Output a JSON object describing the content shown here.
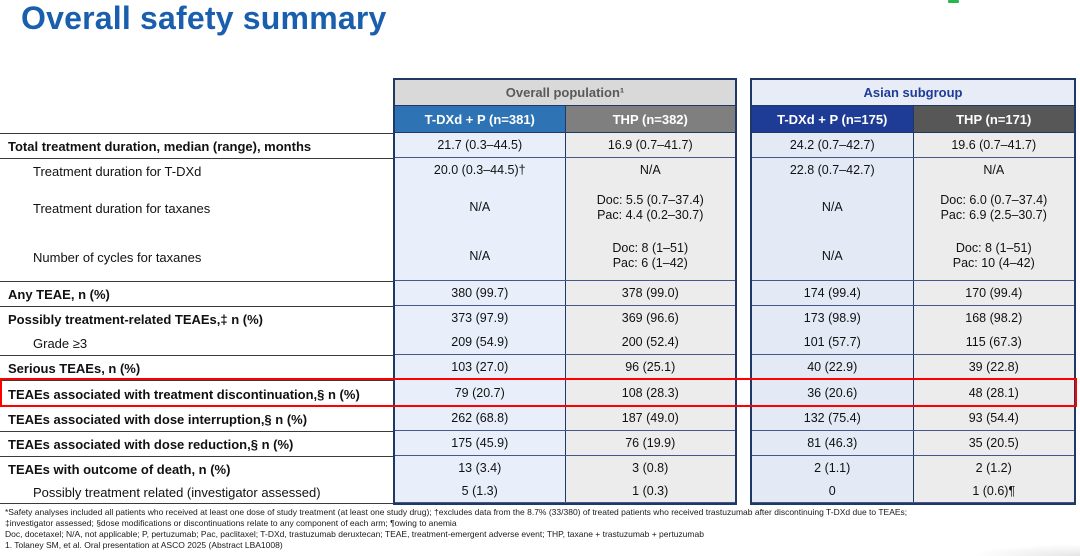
{
  "slide": {
    "title": "Overall safety summary"
  },
  "table": {
    "groups": [
      {
        "title": "Overall population¹",
        "columns": [
          "T-DXd + P (n=381)",
          "THP (n=382)"
        ]
      },
      {
        "title": "Asian subgroup",
        "columns": [
          "T-DXd + P (n=175)",
          "THP (n=171)"
        ]
      }
    ],
    "rows": [
      {
        "label": "Total treatment duration, median (range), months",
        "values": [
          "21.7 (0.3–44.5)",
          "16.9 (0.7–41.7)",
          "24.2 (0.7–42.7)",
          "19.6 (0.7–41.7)"
        ]
      },
      {
        "label": "Treatment duration for T-DXd",
        "values": [
          "20.0 (0.3–44.5)†",
          "N/A",
          "22.8 (0.7–42.7)",
          "N/A"
        ]
      },
      {
        "label": "Treatment duration for taxanes",
        "values": [
          "N/A",
          "Doc: 5.5 (0.7–37.4)\nPac: 4.4 (0.2–30.7)",
          "N/A",
          "Doc: 6.0 (0.7–37.4)\nPac: 6.9 (2.5–30.7)"
        ]
      },
      {
        "label": "Number of cycles for taxanes",
        "values": [
          "N/A",
          "Doc: 8 (1–51)\nPac: 6 (1–42)",
          "N/A",
          "Doc: 8 (1–51)\nPac: 10 (4–42)"
        ]
      },
      {
        "label": "Any TEAE, n (%)",
        "values": [
          "380 (99.7)",
          "378 (99.0)",
          "174 (99.4)",
          "170 (99.4)"
        ]
      },
      {
        "label": "Possibly treatment-related TEAEs,‡ n (%)",
        "values": [
          "373 (97.9)",
          "369 (96.6)",
          "173 (98.9)",
          "168 (98.2)"
        ]
      },
      {
        "label": "Grade ≥3",
        "values": [
          "209 (54.9)",
          "200 (52.4)",
          "101 (57.7)",
          "115 (67.3)"
        ]
      },
      {
        "label": "Serious TEAEs, n (%)",
        "values": [
          "103 (27.0)",
          "96 (25.1)",
          "40 (22.9)",
          "39 (22.8)"
        ]
      },
      {
        "label": "TEAEs associated with treatment discontinuation,§ n (%)",
        "values": [
          "79 (20.7)",
          "108 (28.3)",
          "36 (20.6)",
          "48 (28.1)"
        ]
      },
      {
        "label": "TEAEs associated with dose interruption,§ n (%)",
        "values": [
          "262 (68.8)",
          "187 (49.0)",
          "132 (75.4)",
          "93 (54.4)"
        ]
      },
      {
        "label": "TEAEs associated with dose reduction,§ n (%)",
        "values": [
          "175 (45.9)",
          "76 (19.9)",
          "81 (46.3)",
          "35 (20.5)"
        ]
      },
      {
        "label": "TEAEs with outcome of death, n (%)",
        "values": [
          "13 (3.4)",
          "3 (0.8)",
          "2 (1.1)",
          "2 (1.2)"
        ]
      },
      {
        "label": "Possibly treatment related (investigator assessed)",
        "values": [
          "5 (1.3)",
          "1 (0.3)",
          "0",
          "1 (0.6)¶"
        ]
      }
    ]
  },
  "footnotes": [
    "*Safety analyses included all patients who received at least one dose of study treatment (at least one study drug); †excludes data from the 8.7% (33/380) of treated patients who received trastuzumab after discontinuing T-DXd due to TEAEs;",
    "‡investigator assessed; §dose modifications or discontinuations relate to any component of each arm; ¶owing to anemia",
    "Doc, docetaxel; N/A, not applicable; P, pertuzumab; Pac, paclitaxel; T-DXd, trastuzumab deruxtecan; TEAE, treatment-emergent adverse event; THP, taxane + trastuzumab + pertuzumab",
    "1. Tolaney SM, et al. Oral presentation at ASCO 2025 (Abstract LBA1008)"
  ],
  "colors": {
    "title_blue": "#1a5fad",
    "group_border_navy": "#1f3864",
    "highlight_red": "#ff0000",
    "tdxd_header_overall": "#2e74b5",
    "thp_header_overall": "#7f7f7f",
    "tdxd_header_asian": "#1e3c96",
    "thp_header_asian": "#575757",
    "logo_mark_green": "#27b64e"
  }
}
